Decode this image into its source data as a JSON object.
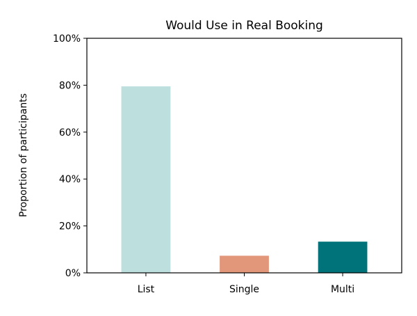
{
  "chart_data": {
    "type": "bar",
    "title": "Would Use in Real Booking",
    "xlabel": "",
    "ylabel": "Proportion of participants",
    "categories": [
      "List",
      "Single",
      "Multi"
    ],
    "values": [
      0.795,
      0.073,
      0.133
    ],
    "colors": [
      "#bde0df",
      "#e2977a",
      "#00737a"
    ],
    "ylim": [
      0,
      1
    ],
    "yticks": [
      0,
      0.2,
      0.4,
      0.6,
      0.8,
      1.0
    ],
    "ytick_labels": [
      "0%",
      "20%",
      "40%",
      "60%",
      "80%",
      "100%"
    ],
    "grid": false,
    "legend": "none"
  }
}
